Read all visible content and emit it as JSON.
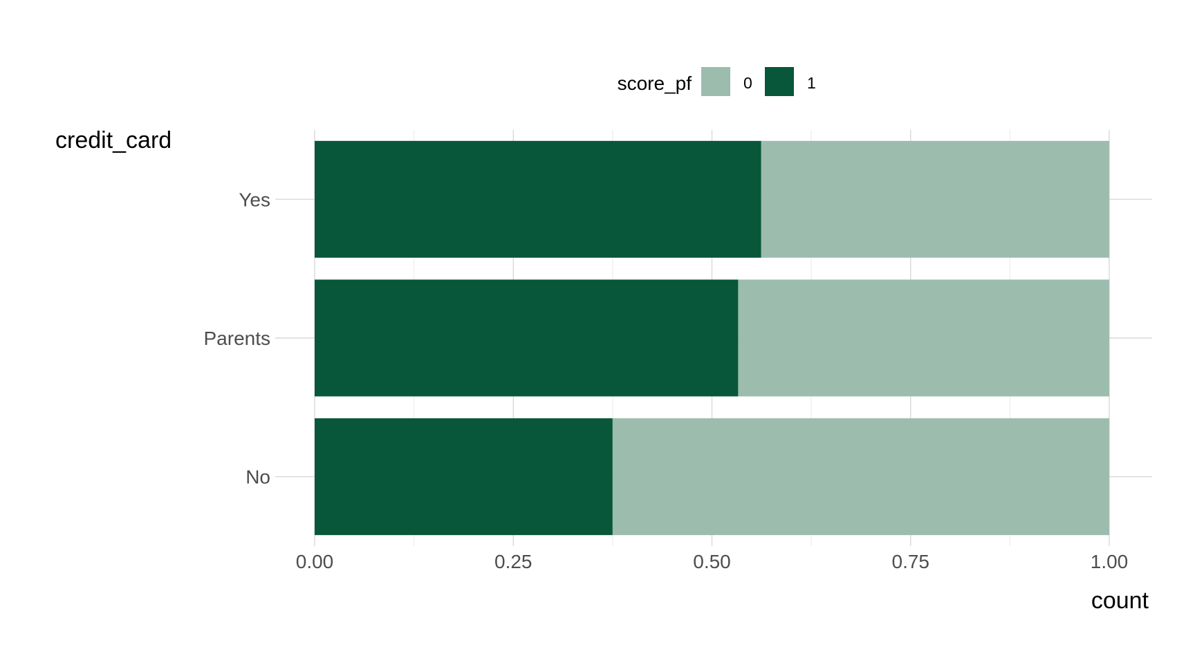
{
  "chart_data": {
    "type": "bar",
    "orientation": "horizontal",
    "stacked": true,
    "categories": [
      "No",
      "Parents",
      "Yes"
    ],
    "series": [
      {
        "name": "1",
        "values": [
          0.375,
          0.533,
          0.562
        ],
        "color": "#08573a"
      },
      {
        "name": "0",
        "values": [
          0.625,
          0.467,
          0.438
        ],
        "color": "#9cbcae"
      }
    ],
    "xlabel": "count",
    "ylabel": "credit_card",
    "xlim": [
      0,
      1
    ],
    "xticks": [
      "0.00",
      "0.25",
      "0.50",
      "0.75",
      "1.00"
    ],
    "xtick_values": [
      0,
      0.25,
      0.5,
      0.75,
      1
    ],
    "grid": true,
    "legend": {
      "title": "score_pf",
      "placement": "top",
      "entries": [
        {
          "label": "0",
          "color": "#9cbcae"
        },
        {
          "label": "1",
          "color": "#08573a"
        }
      ]
    }
  }
}
